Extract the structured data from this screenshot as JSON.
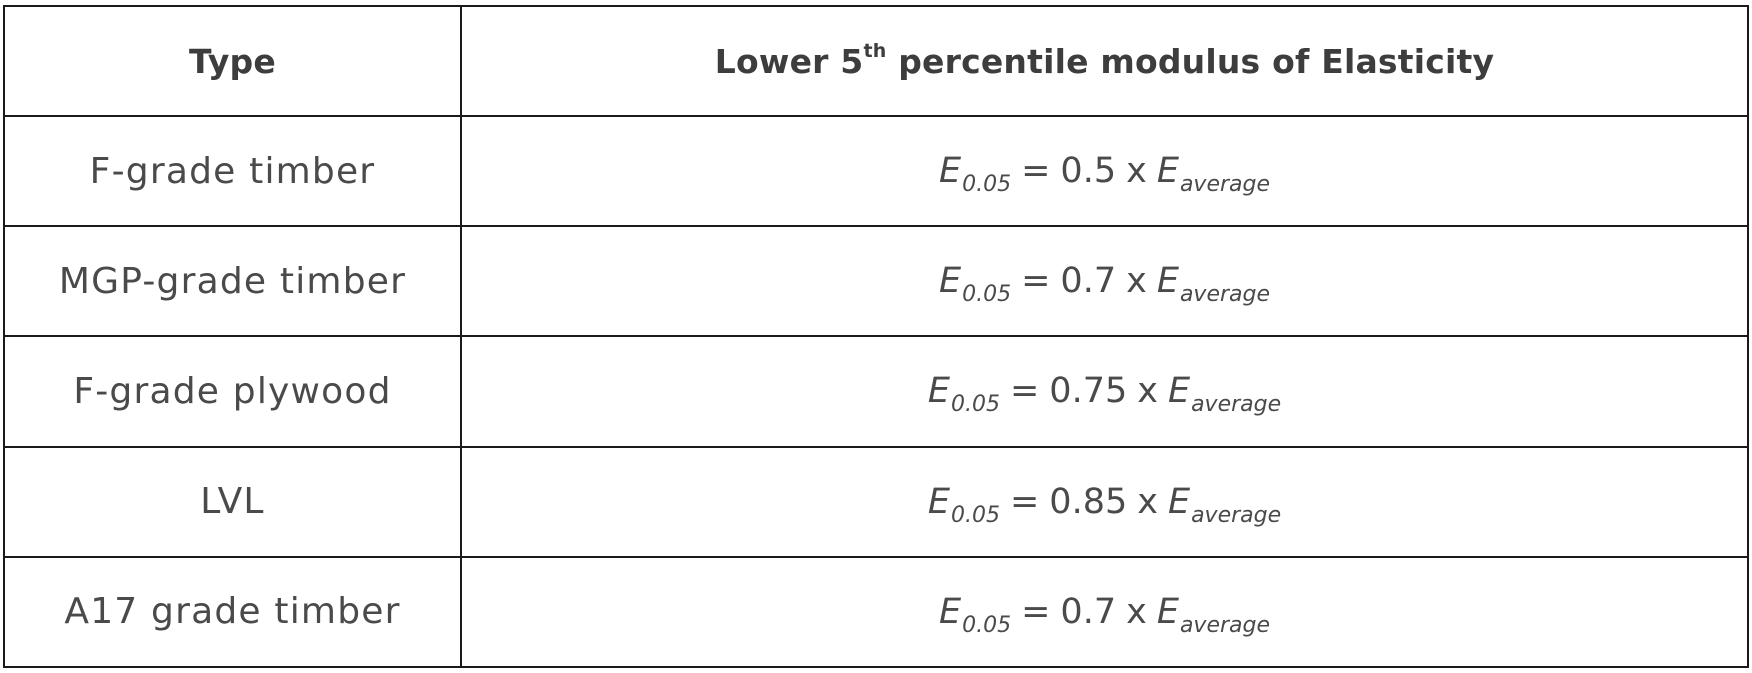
{
  "table": {
    "header": {
      "type": "Type",
      "modulus_prefix": "Lower 5",
      "modulus_sup": "th",
      "modulus_suffix": " percentile modulus of Elasticity"
    },
    "symbol": {
      "e": "E",
      "sub_percentile": "0.05",
      "sub_average": "average",
      "equals": "=",
      "times": "x"
    },
    "rows": [
      {
        "type": "F-grade timber",
        "factor": "0.5"
      },
      {
        "type": "MGP-grade timber",
        "factor": "0.7"
      },
      {
        "type": "F-grade plywood",
        "factor": "0.75"
      },
      {
        "type": "LVL",
        "factor": "0.85"
      },
      {
        "type": "A17 grade timber",
        "factor": "0.7"
      }
    ]
  }
}
